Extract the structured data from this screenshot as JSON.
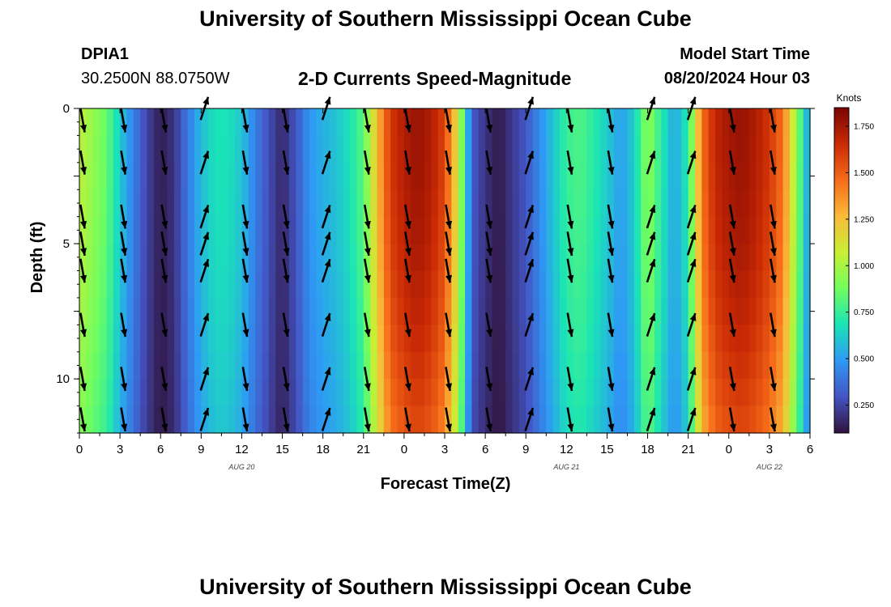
{
  "header": {
    "title": "University of Southern Mississippi Ocean Cube",
    "station_id": "DPIA1",
    "station_coords": "30.2500N  88.0750W",
    "plot_title": "2-D Currents Speed-Magnitude",
    "model_label": "Model Start Time",
    "model_time": "08/20/2024 Hour 03"
  },
  "footer": {
    "title": "University of Southern Mississippi Ocean Cube"
  },
  "colors": {
    "background": "#ffffff",
    "text": "#000000",
    "colormap": [
      "#30123b",
      "#4454c4",
      "#2e99f5",
      "#1ae4b6",
      "#72fe5e",
      "#c8ef34",
      "#faba39",
      "#f66b19",
      "#ca2a04",
      "#7a0403"
    ]
  },
  "chart_data": {
    "type": "heatmap",
    "title": "2-D Currents Speed-Magnitude",
    "xlabel": "Forecast Time(Z)",
    "ylabel": "Depth (ft)",
    "x_tick_labels": [
      "0",
      "3",
      "6",
      "9",
      "12",
      "15",
      "18",
      "21",
      "0",
      "3",
      "6",
      "9",
      "12",
      "15",
      "18",
      "21",
      "0",
      "3",
      "6"
    ],
    "x_range_hours": [
      0,
      54
    ],
    "date_labels": [
      {
        "text": "AUG 20",
        "hour": 12
      },
      {
        "text": "AUG 21",
        "hour": 36
      },
      {
        "text": "AUG 22",
        "hour": 51
      }
    ],
    "y_tick_labels": [
      "0",
      "5",
      "10"
    ],
    "ylim": [
      12,
      0
    ],
    "colorbar": {
      "label": "Knots",
      "range": [
        0.1,
        1.85
      ],
      "ticks": [
        "1.750",
        "1.500",
        "1.250",
        "1.000",
        "0.750",
        "0.500",
        "0.250"
      ]
    },
    "speed_profile_knots": [
      {
        "hour": 0,
        "speed": 1.05
      },
      {
        "hour": 1,
        "speed": 0.95
      },
      {
        "hour": 2,
        "speed": 0.85
      },
      {
        "hour": 3,
        "speed": 0.62
      },
      {
        "hour": 4,
        "speed": 0.42
      },
      {
        "hour": 5,
        "speed": 0.25
      },
      {
        "hour": 6,
        "speed": 0.13
      },
      {
        "hour": 7,
        "speed": 0.2
      },
      {
        "hour": 8,
        "speed": 0.4
      },
      {
        "hour": 9,
        "speed": 0.58
      },
      {
        "hour": 10,
        "speed": 0.68
      },
      {
        "hour": 11,
        "speed": 0.68
      },
      {
        "hour": 12,
        "speed": 0.6
      },
      {
        "hour": 13,
        "speed": 0.42
      },
      {
        "hour": 14,
        "speed": 0.28
      },
      {
        "hour": 15,
        "speed": 0.16
      },
      {
        "hour": 16,
        "speed": 0.3
      },
      {
        "hour": 17,
        "speed": 0.48
      },
      {
        "hour": 18,
        "speed": 0.55
      },
      {
        "hour": 19,
        "speed": 0.6
      },
      {
        "hour": 20,
        "speed": 0.68
      },
      {
        "hour": 21,
        "speed": 0.82
      },
      {
        "hour": 22,
        "speed": 1.25
      },
      {
        "hour": 23,
        "speed": 1.62
      },
      {
        "hour": 24,
        "speed": 1.72
      },
      {
        "hour": 25,
        "speed": 1.78
      },
      {
        "hour": 26,
        "speed": 1.72
      },
      {
        "hour": 27,
        "speed": 1.58
      },
      {
        "hour": 28,
        "speed": 1.1
      },
      {
        "hour": 29,
        "speed": 0.32
      },
      {
        "hour": 30,
        "speed": 0.2
      },
      {
        "hour": 31,
        "speed": 0.12
      },
      {
        "hour": 32,
        "speed": 0.22
      },
      {
        "hour": 33,
        "speed": 0.3
      },
      {
        "hour": 34,
        "speed": 0.45
      },
      {
        "hour": 35,
        "speed": 0.6
      },
      {
        "hour": 36,
        "speed": 0.75
      },
      {
        "hour": 37,
        "speed": 0.8
      },
      {
        "hour": 38,
        "speed": 0.72
      },
      {
        "hour": 39,
        "speed": 0.62
      },
      {
        "hour": 40,
        "speed": 0.5
      },
      {
        "hour": 41,
        "speed": 0.62
      },
      {
        "hour": 42,
        "speed": 0.95
      },
      {
        "hour": 43,
        "speed": 0.72
      },
      {
        "hour": 44,
        "speed": 0.52
      },
      {
        "hour": 45,
        "speed": 0.72
      },
      {
        "hour": 46,
        "speed": 1.45
      },
      {
        "hour": 47,
        "speed": 1.68
      },
      {
        "hour": 48,
        "speed": 1.75
      },
      {
        "hour": 49,
        "speed": 1.78
      },
      {
        "hour": 50,
        "speed": 1.72
      },
      {
        "hour": 51,
        "speed": 1.62
      },
      {
        "hour": 52,
        "speed": 1.45
      },
      {
        "hour": 53,
        "speed": 0.95
      },
      {
        "hour": 54,
        "speed": 0.45
      }
    ],
    "vector_hours": [
      0,
      3,
      6,
      9,
      12,
      15,
      18,
      21,
      24,
      27,
      30,
      33,
      36,
      39,
      42,
      45,
      48,
      51
    ],
    "vector_depths_ft": [
      0,
      2,
      4,
      5,
      6,
      8,
      10,
      11.5
    ],
    "vector_direction": [
      "down",
      "down",
      "down",
      "up",
      "down",
      "down",
      "up",
      "down",
      "down",
      "down",
      "down",
      "up",
      "down",
      "down",
      "up",
      "up",
      "down",
      "down"
    ]
  }
}
